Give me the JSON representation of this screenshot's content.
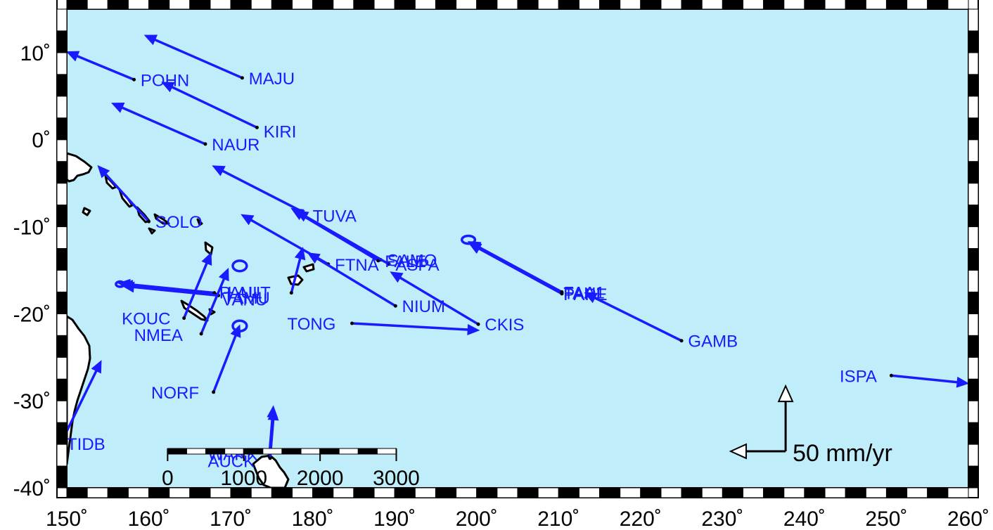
{
  "map": {
    "lon_range": [
      150,
      260
    ],
    "lat_range": [
      -40,
      15
    ],
    "ocean_color": "#bfeefa",
    "land_color": "#ffffff",
    "coast_color": "#000000",
    "vector_color": "#1a1aff",
    "x_ticks": [
      {
        "value": 150,
        "label": "150˚"
      },
      {
        "value": 160,
        "label": "160˚"
      },
      {
        "value": 170,
        "label": "170˚"
      },
      {
        "value": 180,
        "label": "180˚"
      },
      {
        "value": 190,
        "label": "190˚"
      },
      {
        "value": 200,
        "label": "200˚"
      },
      {
        "value": 210,
        "label": "210˚"
      },
      {
        "value": 220,
        "label": "220˚"
      },
      {
        "value": 230,
        "label": "230˚"
      },
      {
        "value": 240,
        "label": "240˚"
      },
      {
        "value": 250,
        "label": "250˚"
      },
      {
        "value": 260,
        "label": "260˚"
      }
    ],
    "y_ticks": [
      {
        "value": 10,
        "label": "10˚"
      },
      {
        "value": 0,
        "label": "0˚"
      },
      {
        "value": -10,
        "label": "-10˚"
      },
      {
        "value": -20,
        "label": "-20˚"
      },
      {
        "value": -30,
        "label": "-30˚"
      },
      {
        "value": -40,
        "label": "-40˚"
      }
    ]
  },
  "stations": [
    {
      "name": "MAJU",
      "lon": 171.4,
      "lat": 7.1,
      "tip_lon": 159.5,
      "tip_lat": 12.0,
      "label_dlon": 0.8,
      "label_dlat": 0
    },
    {
      "name": "POHN",
      "lon": 158.2,
      "lat": 6.9,
      "tip_lon": 150.0,
      "tip_lat": 10.1,
      "label_dlon": 0.8,
      "label_dlat": 0
    },
    {
      "name": "KIRI",
      "lon": 173.2,
      "lat": 1.4,
      "tip_lon": 161.6,
      "tip_lat": 6.6,
      "label_dlon": 0.8,
      "label_dlat": -0.4
    },
    {
      "name": "NAUR",
      "lon": 166.9,
      "lat": -0.5,
      "tip_lon": 155.5,
      "tip_lat": 4.2,
      "label_dlon": 0.8,
      "label_dlat": 0
    },
    {
      "name": "TUVA",
      "lon": 179.2,
      "lat": -8.5,
      "tip_lon": 167.8,
      "tip_lat": -3.0,
      "label_dlon": 0.8,
      "label_dlat": -0.2
    },
    {
      "name": "SOLO",
      "lon": 160.0,
      "lat": -9.4,
      "tip_lon": 153.8,
      "tip_lat": -3.0,
      "label_dlon": 0.8,
      "label_dlat": 0
    },
    {
      "name": "SAMO",
      "lon": 188.3,
      "lat": -13.8,
      "tip_lon": 177.4,
      "tip_lat": -7.9,
      "label_dlon": 0.8,
      "label_dlat": 0
    },
    {
      "name": "FALE",
      "lon": 188.0,
      "lat": -13.9,
      "tip_lon": 177.5,
      "tip_lat": -8.0,
      "label_dlon": 0.8,
      "label_dlat": 0
    },
    {
      "name": "ASPA",
      "lon": 189.3,
      "lat": -14.3,
      "tip_lon": 178.0,
      "tip_lat": -8.2,
      "label_dlon": 0.8,
      "label_dlat": 0
    },
    {
      "name": "FTNA",
      "lon": 181.9,
      "lat": -14.3,
      "tip_lon": 171.3,
      "tip_lat": -8.6,
      "label_dlon": 0.8,
      "label_dlat": 0
    },
    {
      "name": "NIUM",
      "lon": 190.1,
      "lat": -19.1,
      "tip_lon": 179.4,
      "tip_lat": -13.0,
      "label_dlon": 0.8,
      "label_dlat": 0
    },
    {
      "name": "CKIS",
      "lon": 200.2,
      "lat": -21.2,
      "tip_lon": 189.5,
      "tip_lat": -15.2,
      "label_dlon": 0.8,
      "label_dlat": 0
    },
    {
      "name": "LAUT",
      "lon": 177.4,
      "lat": -17.6,
      "tip_lon": 178.8,
      "tip_lat": -12.4,
      "label_dlon": -7.8,
      "label_dlat": 0.1
    },
    {
      "name": "VANU",
      "lon": 168.3,
      "lat": -17.8,
      "tip_lon": 156.6,
      "tip_lat": -16.6,
      "label_dlon": 0.6,
      "label_dlat": -0.5
    },
    {
      "name": "PAUL",
      "lon": 168.0,
      "lat": -17.6,
      "tip_lon": 156.3,
      "tip_lat": -16.5,
      "label_dlon": 0.6,
      "label_dlat": 0.1
    },
    {
      "name": "TAMU",
      "lon": 168.5,
      "lat": -17.9,
      "tip_lon": 156.8,
      "tip_lat": -16.8,
      "label_dlon": 0.6,
      "label_dlat": -0.2
    },
    {
      "name": "KOUC",
      "lon": 164.3,
      "lat": -20.5,
      "tip_lon": 167.6,
      "tip_lat": -13.0,
      "label_dlon": -7.6,
      "label_dlat": 0
    },
    {
      "name": "NMEA",
      "lon": 166.4,
      "lat": -22.3,
      "tip_lon": 169.7,
      "tip_lat": -14.8,
      "label_dlon": -8.2,
      "label_dlat": -0.1
    },
    {
      "name": "TONG",
      "lon": 184.8,
      "lat": -21.1,
      "tip_lon": 200.3,
      "tip_lat": -21.9,
      "label_dlon": -7.9,
      "label_dlat": 0
    },
    {
      "name": "TAHI",
      "lon": 210.4,
      "lat": -17.6,
      "tip_lon": 199.0,
      "tip_lat": -11.8,
      "label_dlon": 0.2,
      "label_dlat": 0
    },
    {
      "name": "PAPE",
      "lon": 210.4,
      "lat": -17.7,
      "tip_lon": 199.1,
      "tip_lat": -11.9,
      "label_dlon": 0.2,
      "label_dlat": 0
    },
    {
      "name": "FAA1",
      "lon": 210.4,
      "lat": -17.5,
      "tip_lon": 199.0,
      "tip_lat": -11.7,
      "label_dlon": 0.2,
      "label_dlat": 0
    },
    {
      "name": "GAMB",
      "lon": 225.0,
      "lat": -23.1,
      "tip_lon": 213.2,
      "tip_lat": -17.6,
      "label_dlon": 0.8,
      "label_dlat": 0
    },
    {
      "name": "ISPA",
      "lon": 250.6,
      "lat": -27.1,
      "tip_lon": 260.0,
      "tip_lat": -28.0,
      "label_dlon": -6.3,
      "label_dlat": 0
    },
    {
      "name": "NORF",
      "lon": 167.9,
      "lat": -29.0,
      "tip_lon": 171.1,
      "tip_lat": -21.3,
      "label_dlon": -7.6,
      "label_dlat": 0
    },
    {
      "name": "WARK",
      "lon": 174.7,
      "lat": -36.4,
      "tip_lon": 175.2,
      "tip_lat": -30.6,
      "label_dlon": -7.5,
      "label_dlat": 0.3
    },
    {
      "name": "AUCK",
      "lon": 174.8,
      "lat": -36.6,
      "tip_lon": 175.3,
      "tip_lat": -30.9,
      "label_dlon": -7.6,
      "label_dlat": -0.3
    },
    {
      "name": "TIDB",
      "lon": 149.0,
      "lat": -35.4,
      "tip_lon": 154.2,
      "tip_lat": -25.4,
      "label_dlon": 1.0,
      "label_dlat": 0.5
    }
  ],
  "ellipses": [
    {
      "lon": 199.0,
      "lat": -11.5,
      "rx": 0.8,
      "ry": 0.45
    },
    {
      "lon": 171.1,
      "lat": -14.5,
      "rx": 0.85,
      "ry": 0.6
    },
    {
      "lon": 171.1,
      "lat": -21.4,
      "rx": 0.85,
      "ry": 0.6
    },
    {
      "lon": 156.5,
      "lat": -16.6,
      "rx": 0.5,
      "ry": 0.3
    }
  ],
  "scalebar": {
    "labels": [
      "0",
      "1000",
      "2000",
      "3000"
    ],
    "lon_start": 162.3,
    "lon_end": 190.2,
    "lat": -35.8
  },
  "legend": {
    "label": "50 mm/yr",
    "corner_lon": 237.7,
    "corner_lat": -35.8,
    "east_tip_lon": 231.0,
    "north_tip_lat": -28.3
  }
}
